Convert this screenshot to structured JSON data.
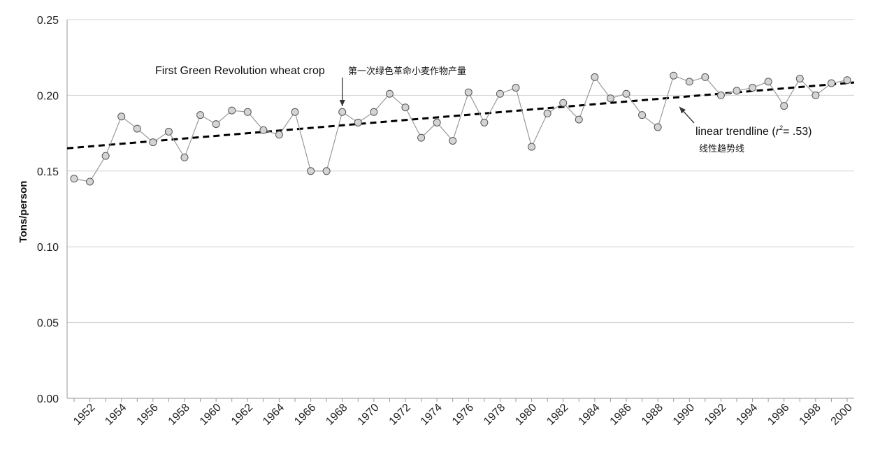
{
  "chart_data": {
    "type": "line",
    "xlabel": "",
    "ylabel": "Tons/person",
    "ylim": [
      0,
      0.25
    ],
    "y_ticks": [
      "0.00",
      "0.05",
      "0.10",
      "0.15",
      "0.20",
      "0.25"
    ],
    "x_range": [
      1951,
      2000
    ],
    "x_ticks": [
      "1952",
      "1954",
      "1956",
      "1958",
      "1960",
      "1962",
      "1964",
      "1966",
      "1968",
      "1970",
      "1972",
      "1974",
      "1976",
      "1978",
      "1980",
      "1982",
      "1984",
      "1986",
      "1988",
      "1990",
      "1992",
      "1994",
      "1996",
      "1998",
      "2000"
    ],
    "grid": "horizontal",
    "series": [
      {
        "x": [
          1951,
          1952,
          1953,
          1954,
          1955,
          1956,
          1957,
          1958,
          1959,
          1960,
          1961,
          1962,
          1963,
          1964,
          1965,
          1966,
          1967,
          1968,
          1969,
          1970,
          1971,
          1972,
          1973,
          1974,
          1975,
          1976,
          1977,
          1978,
          1979,
          1980,
          1981,
          1982,
          1983,
          1984,
          1985,
          1986,
          1987,
          1988,
          1989,
          1990,
          1991,
          1992,
          1993,
          1994,
          1995,
          1996,
          1997,
          1998,
          1999,
          2000
        ],
        "values": [
          0.145,
          0.143,
          0.16,
          0.186,
          0.178,
          0.169,
          0.176,
          0.159,
          0.187,
          0.181,
          0.19,
          0.189,
          0.177,
          0.174,
          0.189,
          0.15,
          0.15,
          0.189,
          0.182,
          0.189,
          0.201,
          0.192,
          0.172,
          0.182,
          0.17,
          0.202,
          0.182,
          0.201,
          0.205,
          0.166,
          0.188,
          0.195,
          0.184,
          0.212,
          0.198,
          0.201,
          0.187,
          0.179,
          0.213,
          0.209,
          0.212,
          0.2,
          0.203,
          0.205,
          0.209,
          0.193,
          0.211,
          0.2,
          0.208,
          0.21
        ],
        "color": "#999999",
        "marker_fill": "#d4d4d4",
        "marker_stroke": "#555555"
      }
    ],
    "trendline": {
      "style": "dashed",
      "color": "#000000",
      "start": [
        1951,
        0.165
      ],
      "end": [
        2000,
        0.208
      ]
    },
    "annotations": {
      "green_revolution": {
        "label": "First Green Revolution wheat crop",
        "label_zh": "第一次绿色革命小麦作物产量",
        "year": 1968
      },
      "trendline": {
        "label_prefix": "linear trendline (",
        "label_r": "r",
        "label_sup": "2",
        "label_suffix": "= .53)",
        "label_zh": "线性趋势线"
      }
    }
  }
}
